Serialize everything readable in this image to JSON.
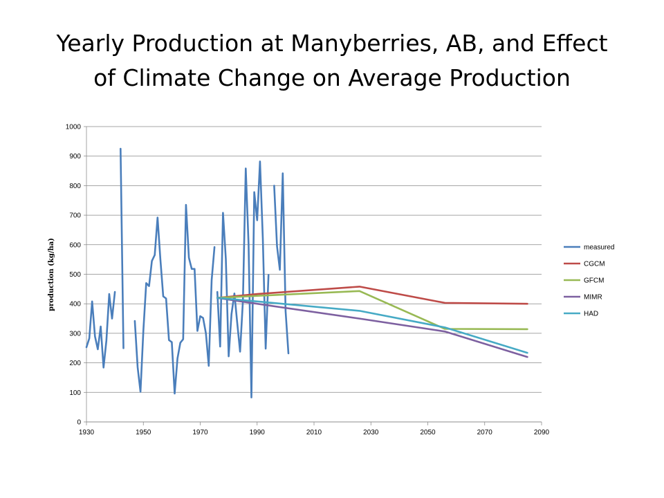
{
  "slide": {
    "title": "Yearly Production at Manyberries, AB, and Effect\nof Climate Change on Average Production"
  },
  "chart_data": {
    "type": "line",
    "title": "",
    "xlabel": "",
    "ylabel": "production (kg/ha)",
    "xlim": [
      1930,
      2090
    ],
    "ylim": [
      0,
      1000
    ],
    "xticks": [
      1930,
      1950,
      1970,
      1990,
      2010,
      2030,
      2050,
      2070,
      2090
    ],
    "yticks": [
      0,
      100,
      200,
      300,
      400,
      500,
      600,
      700,
      800,
      900,
      1000
    ],
    "grid": "horizontal",
    "legend": "right",
    "series": [
      {
        "name": "measured",
        "color": "#4a7ebb",
        "segments": [
          [
            [
              1930,
              253
            ],
            [
              1931,
              283
            ],
            [
              1932,
              408
            ],
            [
              1933,
              290
            ],
            [
              1934,
              246
            ],
            [
              1935,
              323
            ],
            [
              1936,
              184
            ],
            [
              1937,
              275
            ],
            [
              1938,
              433
            ],
            [
              1939,
              350
            ],
            [
              1940,
              440
            ]
          ],
          [
            [
              1942,
              925
            ],
            [
              1943,
              250
            ]
          ],
          [
            [
              1947,
              342
            ],
            [
              1948,
              185
            ],
            [
              1949,
              102
            ],
            [
              1950,
              310
            ],
            [
              1951,
              470
            ],
            [
              1952,
              460
            ],
            [
              1953,
              545
            ],
            [
              1954,
              565
            ],
            [
              1955,
              692
            ],
            [
              1956,
              550
            ],
            [
              1957,
              425
            ],
            [
              1958,
              418
            ],
            [
              1959,
              277
            ],
            [
              1960,
              270
            ],
            [
              1961,
              96
            ],
            [
              1962,
              215
            ],
            [
              1963,
              268
            ],
            [
              1964,
              280
            ],
            [
              1965,
              735
            ],
            [
              1966,
              556
            ],
            [
              1967,
              518
            ],
            [
              1968,
              518
            ],
            [
              1969,
              308
            ],
            [
              1970,
              358
            ],
            [
              1971,
              352
            ],
            [
              1972,
              300
            ],
            [
              1973,
              190
            ],
            [
              1974,
              480
            ],
            [
              1975,
              592
            ]
          ],
          [
            [
              1976,
              440
            ],
            [
              1977,
              255
            ],
            [
              1978,
              708
            ],
            [
              1979,
              552
            ],
            [
              1980,
              222
            ],
            [
              1981,
              365
            ],
            [
              1982,
              435
            ],
            [
              1983,
              335
            ],
            [
              1984,
              238
            ],
            [
              1985,
              410
            ],
            [
              1986,
              858
            ],
            [
              1987,
              600
            ],
            [
              1988,
              83
            ],
            [
              1989,
              778
            ],
            [
              1990,
              683
            ],
            [
              1991,
              882
            ],
            [
              1992,
              620
            ],
            [
              1993,
              248
            ],
            [
              1994,
              498
            ]
          ],
          [
            [
              1996,
              800
            ],
            [
              1997,
              595
            ],
            [
              1998,
              515
            ],
            [
              1999,
              842
            ],
            [
              2000,
              375
            ],
            [
              2001,
              232
            ]
          ]
        ]
      },
      {
        "name": "CGCM",
        "color": "#be4b48",
        "points": [
          [
            1976,
            420
          ],
          [
            1990,
            433
          ],
          [
            2026,
            458
          ],
          [
            2056,
            403
          ],
          [
            2085,
            400
          ]
        ]
      },
      {
        "name": "GFCM",
        "color": "#98b954",
        "points": [
          [
            1976,
            420
          ],
          [
            1990,
            427
          ],
          [
            2026,
            443
          ],
          [
            2056,
            315
          ],
          [
            2085,
            314
          ]
        ]
      },
      {
        "name": "MIMR",
        "color": "#7d60a0",
        "points": [
          [
            1976,
            420
          ],
          [
            1990,
            400
          ],
          [
            2026,
            350
          ],
          [
            2056,
            306
          ],
          [
            2085,
            220
          ]
        ]
      },
      {
        "name": "HAD",
        "color": "#46aac5",
        "points": [
          [
            1976,
            420
          ],
          [
            1990,
            408
          ],
          [
            2026,
            376
          ],
          [
            2056,
            320
          ],
          [
            2085,
            234
          ]
        ]
      }
    ]
  }
}
